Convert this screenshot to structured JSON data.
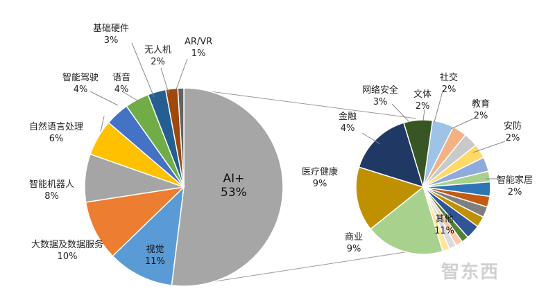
{
  "chart_data": [
    {
      "type": "pie",
      "title": "",
      "slices": [
        {
          "label": "AI+",
          "value": 53,
          "display": "53%",
          "color": "#a6a6a6"
        },
        {
          "label": "视觉",
          "value": 11,
          "display": "11%",
          "color": "#5b9bd5"
        },
        {
          "label": "大数据及数据服务",
          "value": 10,
          "display": "10%",
          "color": "#ed7d31"
        },
        {
          "label": "智能机器人",
          "value": 8,
          "display": "8%",
          "color": "#a5a5a5"
        },
        {
          "label": "自然语言处理",
          "value": 6,
          "display": "6%",
          "color": "#ffc000"
        },
        {
          "label": "智能驾驶",
          "value": 4,
          "display": "4%",
          "color": "#4472c4"
        },
        {
          "label": "语音",
          "value": 4,
          "display": "4%",
          "color": "#70ad47"
        },
        {
          "label": "基础硬件",
          "value": 3,
          "display": "3%",
          "color": "#255e91"
        },
        {
          "label": "无人机",
          "value": 2,
          "display": "2%",
          "color": "#9e480e"
        },
        {
          "label": "AR/VR",
          "value": 1,
          "display": "1%",
          "color": "#636363"
        }
      ]
    },
    {
      "type": "pie",
      "title": "",
      "slices": [
        {
          "label": "网络安全",
          "value": 3,
          "display": "3%",
          "color": "#9dc3e6"
        },
        {
          "label": "文体",
          "value": 2,
          "display": "2%",
          "color": "#f4b183"
        },
        {
          "label": "社交",
          "value": 2,
          "display": "2%",
          "color": "#c9c9c9"
        },
        {
          "label": "",
          "value": 2,
          "display": "",
          "color": "#ffd966"
        },
        {
          "label": "教育",
          "value": 2,
          "display": "2%",
          "color": "#8faadc"
        },
        {
          "label": "",
          "value": 1.5,
          "display": "",
          "color": "#a9d18e"
        },
        {
          "label": "安防",
          "value": 2,
          "display": "2%",
          "color": "#2e75b6"
        },
        {
          "label": "",
          "value": 1.5,
          "display": "",
          "color": "#c55a11"
        },
        {
          "label": "",
          "value": 1.5,
          "display": "",
          "color": "#7f7f7f"
        },
        {
          "label": "",
          "value": 1.5,
          "display": "",
          "color": "#bf9000"
        },
        {
          "label": "智能家居",
          "value": 2,
          "display": "2%",
          "color": "#2f5597"
        },
        {
          "label": "",
          "value": 1,
          "display": "",
          "color": "#548235"
        },
        {
          "label": "",
          "value": 1,
          "display": "",
          "color": "#f8cbad"
        },
        {
          "label": "",
          "value": 1,
          "display": "",
          "color": "#dbdbdb"
        },
        {
          "label": "",
          "value": 1,
          "display": "",
          "color": "#ffe699"
        },
        {
          "label": "其他",
          "value": 11,
          "display": "11%",
          "color": "#a9d18e"
        },
        {
          "label": "商业",
          "value": 9,
          "display": "9%",
          "color": "#bf9000"
        },
        {
          "label": "医疗健康",
          "value": 9,
          "display": "9%",
          "color": "#203864"
        },
        {
          "label": "金融",
          "value": 4,
          "display": "4%",
          "color": "#375623"
        }
      ]
    }
  ],
  "watermark": "智东西"
}
